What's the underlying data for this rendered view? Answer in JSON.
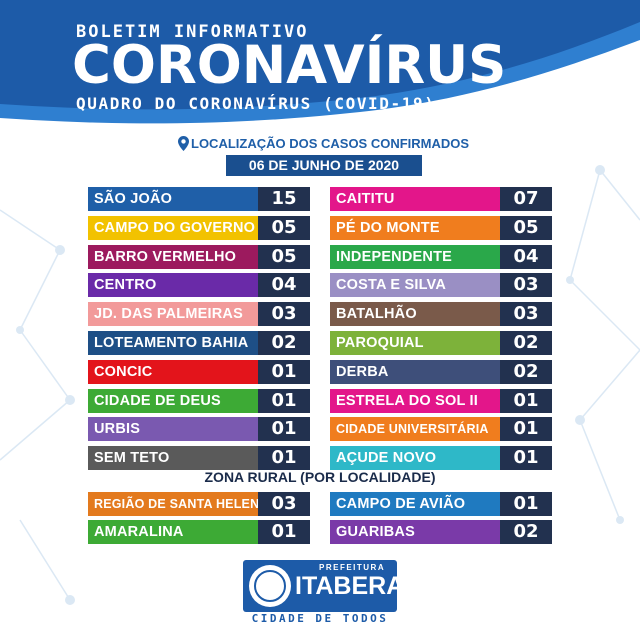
{
  "header": {
    "line1": "BOLETIM INFORMATIVO",
    "title": "CORONAVÍRUS",
    "line3": "QUADRO DO CORONAVÍRUS (COVID-19)"
  },
  "location_label": "LOCALIZAÇÃO DOS CASOS CONFIRMADOS",
  "date": "06 DE JUNHO DE 2020",
  "urban_left": [
    {
      "name": "SÃO JOÃO",
      "count": "15",
      "color": "#1f5fa8"
    },
    {
      "name": "CAMPO DO GOVERNO",
      "count": "05",
      "color": "#f2c200"
    },
    {
      "name": "BARRO VERMELHO",
      "count": "05",
      "color": "#9c1a5e"
    },
    {
      "name": "CENTRO",
      "count": "04",
      "color": "#6a2aa8"
    },
    {
      "name": "JD. DAS PALMEIRAS",
      "count": "03",
      "color": "#f29a9a"
    },
    {
      "name": "LOTEAMENTO BAHIA",
      "count": "02",
      "color": "#1e4f86"
    },
    {
      "name": "CONCIC",
      "count": "01",
      "color": "#e3141b"
    },
    {
      "name": "CIDADE DE DEUS",
      "count": "01",
      "color": "#3daa35"
    },
    {
      "name": "URBIS",
      "count": "01",
      "color": "#7a59b0"
    },
    {
      "name": "SEM TETO",
      "count": "01",
      "color": "#5a5a5a"
    }
  ],
  "urban_right": [
    {
      "name": "CAITITU",
      "count": "07",
      "color": "#e3168a"
    },
    {
      "name": "PÉ DO MONTE",
      "count": "05",
      "color": "#f07d1e"
    },
    {
      "name": "INDEPENDENTE",
      "count": "04",
      "color": "#2aa84a"
    },
    {
      "name": "COSTA E SILVA",
      "count": "03",
      "color": "#9a8fc4"
    },
    {
      "name": "BATALHÃO",
      "count": "03",
      "color": "#7a5a4a"
    },
    {
      "name": "PAROQUIAL",
      "count": "02",
      "color": "#7db23a"
    },
    {
      "name": "DERBA",
      "count": "02",
      "color": "#3e4f7a"
    },
    {
      "name": "ESTRELA DO SOL II",
      "count": "01",
      "color": "#e3168a"
    },
    {
      "name": "CIDADE UNIVERSITÁRIA",
      "count": "01",
      "color": "#f07d1e"
    },
    {
      "name": "AÇUDE NOVO",
      "count": "01",
      "color": "#2eb8c8"
    }
  ],
  "rural_label": "ZONA RURAL (POR LOCALIDADE)",
  "rural_left": [
    {
      "name": "REGIÃO DE SANTA HELENA",
      "count": "03",
      "color": "#e37a1e"
    },
    {
      "name": "AMARALINA",
      "count": "01",
      "color": "#3daa35"
    }
  ],
  "rural_right": [
    {
      "name": "CAMPO DE AVIÃO",
      "count": "01",
      "color": "#1f7ac0"
    },
    {
      "name": "GUARIBAS",
      "count": "02",
      "color": "#7a3aa8"
    }
  ],
  "logo": {
    "prefix": "PREFEITURA",
    "city": "ITABERABA",
    "slogan": "CIDADE DE TODOS"
  }
}
